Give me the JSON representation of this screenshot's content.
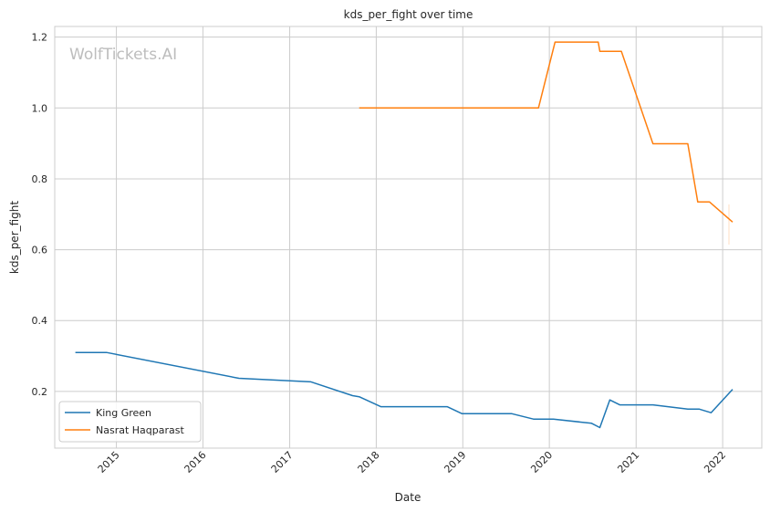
{
  "chart_data": {
    "type": "line",
    "title": "kds_per_fight over time",
    "xlabel": "Date",
    "ylabel": "kds_per_fight",
    "watermark": "WolfTickets.AI",
    "xlim": [
      "2014-04-16",
      "2022-06-15"
    ],
    "ylim": [
      0.04,
      1.23
    ],
    "x_ticks": [
      "2015",
      "2016",
      "2017",
      "2018",
      "2019",
      "2020",
      "2021",
      "2022"
    ],
    "y_ticks": [
      "0.2",
      "0.4",
      "0.6",
      "0.8",
      "1.0",
      "1.2"
    ],
    "grid": true,
    "legend_position": "lower-left",
    "series": [
      {
        "name": "King Green",
        "color": "#1f77b4",
        "points": [
          [
            "2014-07-12",
            0.31
          ],
          [
            "2014-11-20",
            0.31
          ],
          [
            "2016-06-01",
            0.237
          ],
          [
            "2017-04-01",
            0.227
          ],
          [
            "2017-09-23",
            0.188
          ],
          [
            "2017-10-21",
            0.185
          ],
          [
            "2018-01-20",
            0.157
          ],
          [
            "2018-10-27",
            0.157
          ],
          [
            "2018-12-29",
            0.137
          ],
          [
            "2019-07-27",
            0.137
          ],
          [
            "2019-10-26",
            0.122
          ],
          [
            "2020-01-18",
            0.122
          ],
          [
            "2020-06-27",
            0.11
          ],
          [
            "2020-08-01",
            0.098
          ],
          [
            "2020-09-12",
            0.176
          ],
          [
            "2020-10-24",
            0.162
          ],
          [
            "2021-03-13",
            0.162
          ],
          [
            "2021-08-07",
            0.15
          ],
          [
            "2021-09-25",
            0.15
          ],
          [
            "2021-11-13",
            0.14
          ],
          [
            "2022-02-12",
            0.206
          ]
        ]
      },
      {
        "name": "Nasrat Haqparast",
        "color": "#ff7f0e",
        "points": [
          [
            "2017-10-21",
            1.0
          ],
          [
            "2019-11-16",
            1.0
          ],
          [
            "2020-01-25",
            1.186
          ],
          [
            "2020-07-25",
            1.186
          ],
          [
            "2020-08-01",
            1.16
          ],
          [
            "2020-10-31",
            1.16
          ],
          [
            "2021-03-13",
            0.899
          ],
          [
            "2021-08-07",
            0.899
          ],
          [
            "2021-09-18",
            0.735
          ],
          [
            "2021-11-06",
            0.735
          ],
          [
            "2022-02-12",
            0.678
          ]
        ]
      }
    ]
  }
}
